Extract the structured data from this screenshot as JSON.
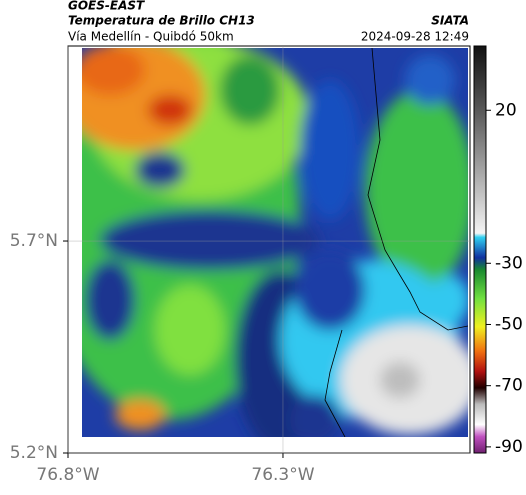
{
  "header": {
    "source": "GOES-EAST",
    "title": "Temperatura de Brillo CH13",
    "subtitle": "Vía Medellín - Quibdó 50km",
    "credit": "SIATA",
    "timestamp": "2024-09-28 12:49"
  },
  "map": {
    "xlim": [
      -76.8,
      -75.865
    ],
    "ylim": [
      5.2,
      6.16
    ],
    "grid": true,
    "xticks": [
      {
        "value": -76.8,
        "label": "76.8°W"
      },
      {
        "value": -76.3,
        "label": "76.3°W"
      }
    ],
    "yticks": [
      {
        "value": 5.2,
        "label": "5.2°N"
      },
      {
        "value": 5.7,
        "label": "5.7°N"
      }
    ]
  },
  "colorbar": {
    "lim": [
      -92,
      41
    ],
    "ticks": [
      20,
      -30,
      -50,
      -70,
      -90
    ]
  }
}
